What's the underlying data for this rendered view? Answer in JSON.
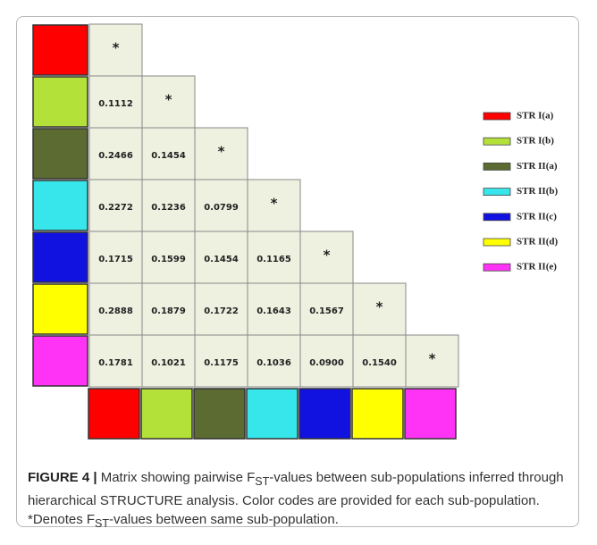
{
  "populations": [
    {
      "name": "STR I(a)",
      "color": "#ff0000"
    },
    {
      "name": "STR I(b)",
      "color": "#b4e03a"
    },
    {
      "name": "STR II(a)",
      "color": "#5b6b32"
    },
    {
      "name": "STR II(b)",
      "color": "#36e6ea"
    },
    {
      "name": "STR II(c)",
      "color": "#1212e0"
    },
    {
      "name": "STR II(d)",
      "color": "#ffff00"
    },
    {
      "name": "STR II(e)",
      "color": "#ff33f5"
    }
  ],
  "matrix": {
    "rows": [
      [
        "*"
      ],
      [
        "0.1112",
        "*"
      ],
      [
        "0.2466",
        "0.1454",
        "*"
      ],
      [
        "0.2272",
        "0.1236",
        "0.0799",
        "*"
      ],
      [
        "0.1715",
        "0.1599",
        "0.1454",
        "0.1165",
        "*"
      ],
      [
        "0.2888",
        "0.1879",
        "0.1722",
        "0.1643",
        "0.1567",
        "*"
      ],
      [
        "0.1781",
        "0.1021",
        "0.1175",
        "0.1036",
        "0.0900",
        "0.1540",
        "*"
      ]
    ]
  },
  "caption": {
    "label": "FIGURE 4 |",
    "parts": [
      "Matrix showing pairwise F",
      "ST",
      "-values between sub-populations inferred through hierarchical STRUCTURE analysis. Color codes are provided for each sub-population. *Denotes F",
      "ST",
      "-values between same sub-population."
    ]
  }
}
